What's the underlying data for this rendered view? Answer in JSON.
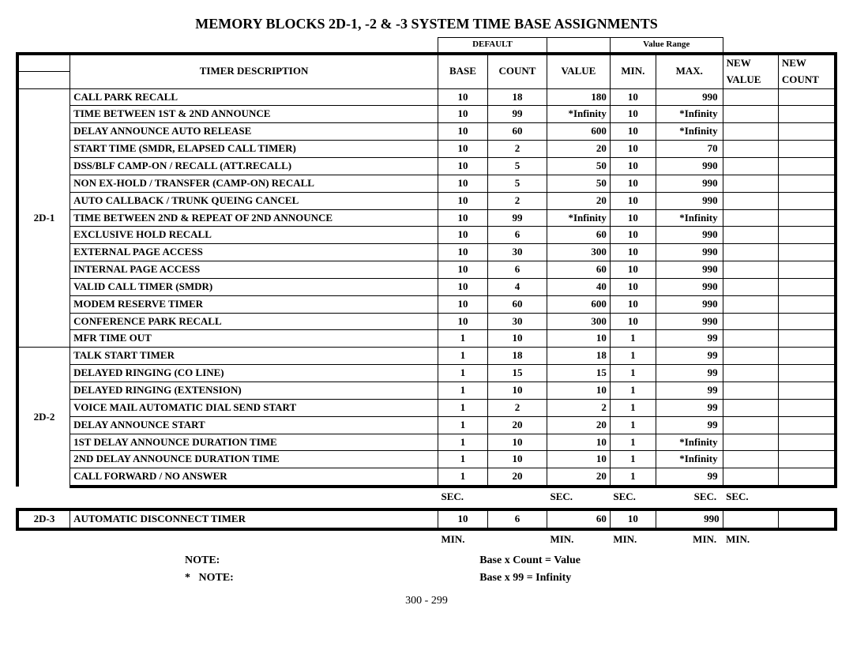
{
  "title": "MEMORY BLOCKS 2D-1, -2 & -3 SYSTEM TIME BASE ASSIGNMENTS",
  "headers": {
    "default": "DEFAULT",
    "value_range": "Value Range",
    "timer_desc": "TIMER DESCRIPTION",
    "base": "BASE",
    "count": "COUNT",
    "value": "VALUE",
    "min": "MIN.",
    "max": "MAX.",
    "new": "NEW",
    "new_value": "VALUE",
    "new_count": "COUNT"
  },
  "blocks": {
    "b1": "2D-1",
    "b2": "2D-2",
    "b3": "2D-3"
  },
  "rows": [
    {
      "d": "CALL PARK RECALL",
      "b": "10",
      "c": "18",
      "v": "180",
      "mn": "10",
      "mx": "990"
    },
    {
      "d": "TIME BETWEEN 1ST & 2ND ANNOUNCE",
      "b": "10",
      "c": "99",
      "v": "*Infinity",
      "mn": "10",
      "mx": "*Infinity"
    },
    {
      "d": "DELAY ANNOUNCE AUTO RELEASE",
      "b": "10",
      "c": "60",
      "v": "600",
      "mn": "10",
      "mx": "*Infinity"
    },
    {
      "d": "START TIME (SMDR, ELAPSED CALL TIMER)",
      "b": "10",
      "c": "2",
      "v": "20",
      "mn": "10",
      "mx": "70"
    },
    {
      "d": "DSS/BLF CAMP-ON /  RECALL (ATT.RECALL)",
      "b": "10",
      "c": "5",
      "v": "50",
      "mn": "10",
      "mx": "990"
    },
    {
      "d": "NON EX-HOLD / TRANSFER (CAMP-ON) RECALL",
      "b": "10",
      "c": "5",
      "v": "50",
      "mn": "10",
      "mx": "990"
    },
    {
      "d": "AUTO CALLBACK / TRUNK QUEING CANCEL",
      "b": "10",
      "c": "2",
      "v": "20",
      "mn": "10",
      "mx": "990"
    },
    {
      "d": "TIME BETWEEN 2ND & REPEAT OF 2ND ANNOUNCE",
      "b": "10",
      "c": "99",
      "v": "*Infinity",
      "mn": "10",
      "mx": "*Infinity"
    },
    {
      "d": "EXCLUSIVE HOLD RECALL",
      "b": "10",
      "c": "6",
      "v": "60",
      "mn": "10",
      "mx": "990"
    },
    {
      "d": "EXTERNAL PAGE ACCESS",
      "b": "10",
      "c": "30",
      "v": "300",
      "mn": "10",
      "mx": "990"
    },
    {
      "d": "INTERNAL PAGE ACCESS",
      "b": "10",
      "c": "6",
      "v": "60",
      "mn": "10",
      "mx": "990"
    },
    {
      "d": "VALID CALL TIMER (SMDR)",
      "b": "10",
      "c": "4",
      "v": "40",
      "mn": "10",
      "mx": "990"
    },
    {
      "d": "MODEM RESERVE TIMER",
      "b": "10",
      "c": "60",
      "v": "600",
      "mn": "10",
      "mx": "990"
    },
    {
      "d": "CONFERENCE PARK RECALL",
      "b": "10",
      "c": "30",
      "v": "300",
      "mn": "10",
      "mx": "990"
    },
    {
      "d": "MFR TIME OUT",
      "b": "1",
      "c": "10",
      "v": "10",
      "mn": "1",
      "mx": "99"
    },
    {
      "d": "TALK START TIMER",
      "b": "1",
      "c": "18",
      "v": "18",
      "mn": "1",
      "mx": "99"
    },
    {
      "d": "DELAYED RINGING (CO LINE)",
      "b": "1",
      "c": "15",
      "v": "15",
      "mn": "1",
      "mx": "99"
    },
    {
      "d": "DELAYED RINGING (EXTENSION)",
      "b": "1",
      "c": "10",
      "v": "10",
      "mn": "1",
      "mx": "99"
    },
    {
      "d": "VOICE MAIL AUTOMATIC DIAL SEND START",
      "b": "1",
      "c": "2",
      "v": "2",
      "mn": "1",
      "mx": "99"
    },
    {
      "d": "DELAY ANNOUNCE START",
      "b": "1",
      "c": "20",
      "v": "20",
      "mn": "1",
      "mx": "99"
    },
    {
      "d": "1ST DELAY ANNOUNCE DURATION TIME",
      "b": "1",
      "c": "10",
      "v": "10",
      "mn": "1",
      "mx": "*Infinity"
    },
    {
      "d": "2ND DELAY ANNOUNCE DURATION TIME",
      "b": "1",
      "c": "10",
      "v": "10",
      "mn": "1",
      "mx": "*Infinity"
    },
    {
      "d": "CALL FORWARD / NO ANSWER",
      "b": "1",
      "c": "20",
      "v": "20",
      "mn": "1",
      "mx": "99"
    }
  ],
  "row3": {
    "d": "AUTOMATIC DISCONNECT TIMER",
    "b": "10",
    "c": "6",
    "v": "60",
    "mn": "10",
    "mx": "990"
  },
  "units": {
    "sec": "SEC.",
    "min": "MIN."
  },
  "notes": {
    "l1a": "NOTE:",
    "l1b": "Base x Count = Value",
    "l2a": "*   NOTE:",
    "l2b": "Base x 99 = Infinity"
  },
  "page_num": "300 - 299",
  "col_widths": {
    "block": "55",
    "desc": "385",
    "base": "52",
    "count": "62",
    "value": "66",
    "min": "48",
    "max": "70",
    "nval": "58",
    "ncnt": "60"
  },
  "colors": {
    "bg": "#ffffff",
    "fg": "#000000"
  }
}
